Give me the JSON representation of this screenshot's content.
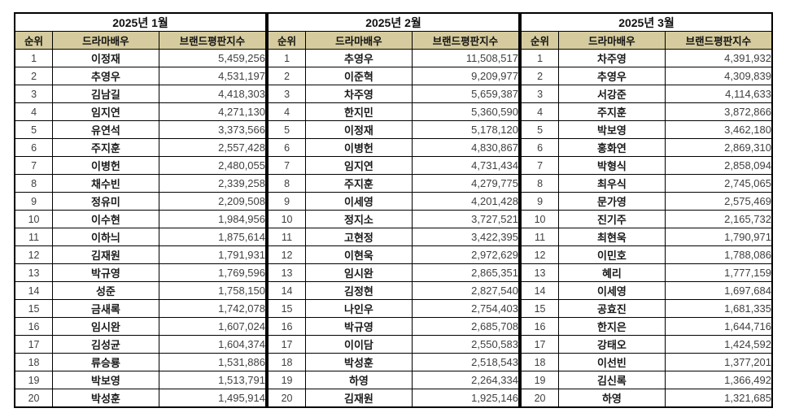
{
  "styles": {
    "header_bg": "#d5cb9e",
    "border_color": "#000000",
    "name_color": "#1a1a1a",
    "number_color": "#3f3f3f",
    "page_bg": "#ffffff"
  },
  "tables": [
    {
      "title": "2025년 1월",
      "columns": [
        "순위",
        "드라마배우",
        "브랜드평판지수"
      ],
      "rows": [
        [
          "1",
          "이정재",
          "5,459,256"
        ],
        [
          "2",
          "추영우",
          "4,531,197"
        ],
        [
          "3",
          "김남길",
          "4,418,303"
        ],
        [
          "4",
          "임지연",
          "4,271,130"
        ],
        [
          "5",
          "유연석",
          "3,373,566"
        ],
        [
          "6",
          "주지훈",
          "2,557,428"
        ],
        [
          "7",
          "이병헌",
          "2,480,055"
        ],
        [
          "8",
          "채수빈",
          "2,339,258"
        ],
        [
          "9",
          "정유미",
          "2,209,508"
        ],
        [
          "10",
          "이수현",
          "1,984,956"
        ],
        [
          "11",
          "이하늬",
          "1,875,614"
        ],
        [
          "12",
          "김재원",
          "1,791,931"
        ],
        [
          "13",
          "박규영",
          "1,769,596"
        ],
        [
          "14",
          "성준",
          "1,758,150"
        ],
        [
          "15",
          "금새록",
          "1,742,078"
        ],
        [
          "16",
          "임시완",
          "1,607,024"
        ],
        [
          "17",
          "김성균",
          "1,604,374"
        ],
        [
          "18",
          "류승룡",
          "1,531,886"
        ],
        [
          "19",
          "박보영",
          "1,513,791"
        ],
        [
          "20",
          "박성훈",
          "1,495,914"
        ]
      ]
    },
    {
      "title": "2025년 2월",
      "columns": [
        "순위",
        "드라마배우",
        "브랜드평판지수"
      ],
      "rows": [
        [
          "1",
          "추영우",
          "11,508,517"
        ],
        [
          "2",
          "이준혁",
          "9,209,977"
        ],
        [
          "3",
          "차주영",
          "5,659,387"
        ],
        [
          "4",
          "한지민",
          "5,360,590"
        ],
        [
          "5",
          "이정재",
          "5,178,120"
        ],
        [
          "6",
          "이병헌",
          "4,830,867"
        ],
        [
          "7",
          "임지연",
          "4,731,434"
        ],
        [
          "8",
          "주지훈",
          "4,279,775"
        ],
        [
          "9",
          "이세영",
          "4,201,428"
        ],
        [
          "10",
          "정지소",
          "3,727,521"
        ],
        [
          "11",
          "고현정",
          "3,422,395"
        ],
        [
          "12",
          "이현욱",
          "2,972,629"
        ],
        [
          "13",
          "임시완",
          "2,865,351"
        ],
        [
          "14",
          "김정현",
          "2,827,540"
        ],
        [
          "15",
          "나인우",
          "2,754,403"
        ],
        [
          "16",
          "박규영",
          "2,685,708"
        ],
        [
          "17",
          "이이담",
          "2,550,583"
        ],
        [
          "18",
          "박성훈",
          "2,518,543"
        ],
        [
          "19",
          "하영",
          "2,264,334"
        ],
        [
          "20",
          "김재원",
          "1,925,146"
        ]
      ]
    },
    {
      "title": "2025년 3월",
      "columns": [
        "순위",
        "드라마배우",
        "브랜드평판지수"
      ],
      "rows": [
        [
          "1",
          "차주영",
          "4,391,932"
        ],
        [
          "2",
          "추영우",
          "4,309,839"
        ],
        [
          "3",
          "서강준",
          "4,114,633"
        ],
        [
          "4",
          "주지훈",
          "3,872,866"
        ],
        [
          "5",
          "박보영",
          "3,462,180"
        ],
        [
          "6",
          "홍화연",
          "2,869,310"
        ],
        [
          "7",
          "박형식",
          "2,858,094"
        ],
        [
          "8",
          "최우식",
          "2,745,065"
        ],
        [
          "9",
          "문가영",
          "2,575,469"
        ],
        [
          "10",
          "진기주",
          "2,165,732"
        ],
        [
          "11",
          "최현욱",
          "1,790,971"
        ],
        [
          "12",
          "이민호",
          "1,788,086"
        ],
        [
          "13",
          "혜리",
          "1,777,159"
        ],
        [
          "14",
          "이세영",
          "1,697,684"
        ],
        [
          "15",
          "공효진",
          "1,681,335"
        ],
        [
          "16",
          "한지은",
          "1,644,716"
        ],
        [
          "17",
          "강태오",
          "1,424,592"
        ],
        [
          "18",
          "이선빈",
          "1,377,201"
        ],
        [
          "19",
          "김신록",
          "1,366,492"
        ],
        [
          "20",
          "하영",
          "1,321,685"
        ]
      ]
    }
  ]
}
